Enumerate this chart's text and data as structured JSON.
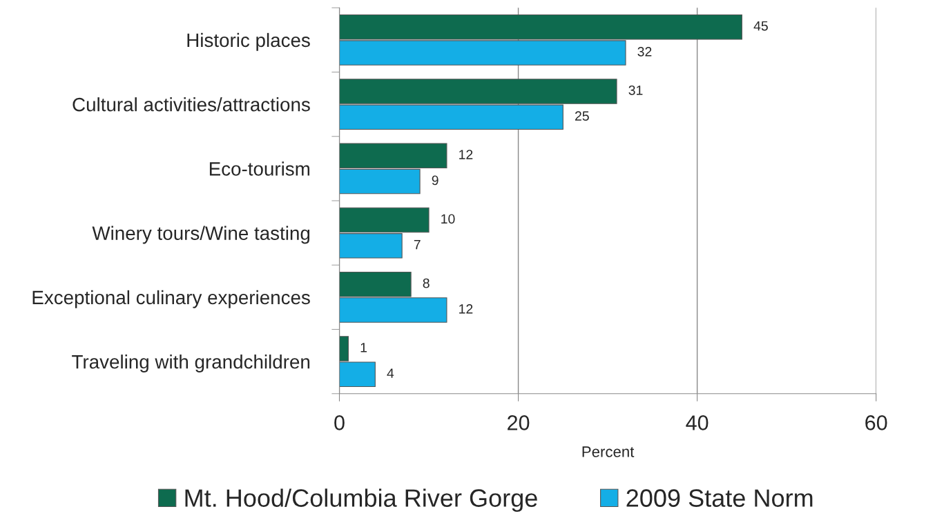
{
  "chart_data": {
    "type": "bar",
    "orientation": "horizontal",
    "categories": [
      "Historic places",
      "Cultural activities/attractions",
      "Eco-tourism",
      "Winery tours/Wine tasting",
      "Exceptional culinary experiences",
      "Traveling with grandchildren"
    ],
    "series": [
      {
        "name": "Mt. Hood/Columbia River Gorge",
        "color": "#0e6b4f",
        "values": [
          45,
          31,
          12,
          10,
          8,
          1
        ]
      },
      {
        "name": "2009 State Norm",
        "color": "#14aee6",
        "values": [
          32,
          25,
          9,
          7,
          12,
          4
        ]
      }
    ],
    "xlabel": "Percent",
    "xlim": [
      0,
      60
    ],
    "xticks": [
      0,
      20,
      40,
      60
    ],
    "grid": "x",
    "legend": "bottom",
    "data_labels": true
  }
}
